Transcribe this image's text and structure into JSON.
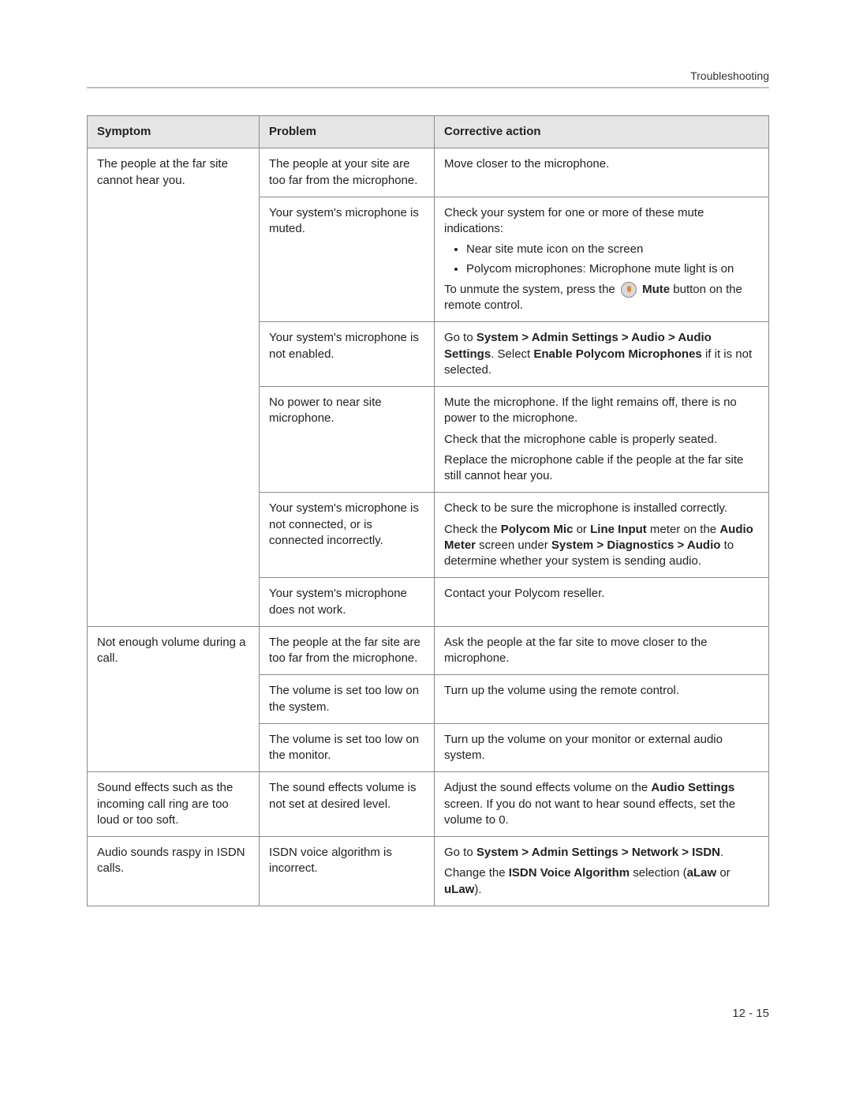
{
  "header": {
    "section": "Troubleshooting"
  },
  "table": {
    "headers": {
      "symptom": "Symptom",
      "problem": "Problem",
      "action": "Corrective action"
    },
    "s1": {
      "symptom": "The people at the far site cannot hear you.",
      "p1": "The people at your site are too far from the microphone.",
      "a1": "Move closer to the microphone.",
      "p2": "Your system's microphone is muted.",
      "a2_lead": "Check your system for one or more of these mute indications:",
      "a2_b1": "Near site mute icon on the screen",
      "a2_b2": "Polycom microphones: Microphone mute light is on",
      "a2_tail1": "To unmute the system, press the",
      "a2_tail_bold": "Mute",
      "a2_tail2": " button on the remote control.",
      "p3": "Your system's microphone is not enabled.",
      "a3_1": "Go to ",
      "a3_b1": "System > Admin Settings > Audio > Audio Settings",
      "a3_2": ". Select ",
      "a3_b2": "Enable Polycom Microphones",
      "a3_3": " if it is not selected.",
      "p4": "No power to near site microphone.",
      "a4_l1": "Mute the microphone. If the light remains off, there is no power to the microphone.",
      "a4_l2": "Check that the microphone cable is properly seated.",
      "a4_l3": "Replace the microphone cable if the people at the far site still cannot hear you.",
      "p5": "Your system's microphone is not connected, or is connected incorrectly.",
      "a5_l1": "Check to be sure the microphone is installed correctly.",
      "a5_2a": "Check the ",
      "a5_2b1": "Polycom Mic",
      "a5_2b": " or ",
      "a5_2b2": "Line Input",
      "a5_2c": " meter on the ",
      "a5_2b3": "Audio Meter",
      "a5_2d": " screen under ",
      "a5_2b4": "System > Diagnostics > Audio",
      "a5_2e": " to determine whether your system is sending audio.",
      "p6": "Your system's microphone does not work.",
      "a6": "Contact your Polycom reseller."
    },
    "s2": {
      "symptom": "Not enough volume during a call.",
      "p1": "The people at the far site are too far from the microphone.",
      "a1": "Ask the people at the far site to move closer to the microphone.",
      "p2": "The volume is set too low on the system.",
      "a2": "Turn up the volume using the remote control.",
      "p3": "The volume is set too low on the monitor.",
      "a3": "Turn up the volume on your monitor or external audio system."
    },
    "s3": {
      "symptom": "Sound effects such as the incoming call ring are too loud or too soft.",
      "p1": "The sound effects volume is not set at desired level.",
      "a1_a": "Adjust the sound effects volume on the ",
      "a1_b": "Audio Settings",
      "a1_c": " screen. If you do not want to hear sound effects, set the volume to 0."
    },
    "s4": {
      "symptom": "Audio sounds raspy in ISDN calls.",
      "p1": "ISDN voice algorithm is incorrect.",
      "a1_a": "Go to ",
      "a1_b": "System > Admin Settings > Network > ISDN",
      "a1_c": ".",
      "a2_a": "Change the ",
      "a2_b": "ISDN Voice Algorithm",
      "a2_c": " selection (",
      "a2_d": "aLaw",
      "a2_e": " or ",
      "a2_f": "uLaw",
      "a2_g": ")."
    }
  },
  "footer": {
    "pagenum": "12 - 15"
  }
}
